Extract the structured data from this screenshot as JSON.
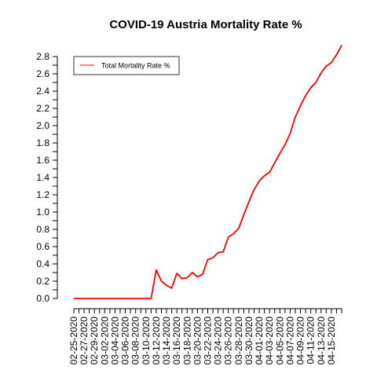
{
  "chart_data": {
    "type": "line",
    "title": "COVID-19 Austria Mortality Rate %",
    "xlabel": "",
    "ylabel": "",
    "ylim": [
      0,
      2.8
    ],
    "yticks": [
      "0.0",
      "0.2",
      "0.4",
      "0.6",
      "0.8",
      "1.0",
      "1.2",
      "1.4",
      "1.6",
      "1.8",
      "2.0",
      "2.2",
      "2.4",
      "2.6",
      "2.8"
    ],
    "xticks": [
      "02-25-2020",
      "02-27-2020",
      "02-29-2020",
      "03-02-2020",
      "03-04-2020",
      "03-06-2020",
      "03-08-2020",
      "03-10-2020",
      "03-12-2020",
      "03-14-2020",
      "03-16-2020",
      "03-18-2020",
      "03-20-2020",
      "03-22-2020",
      "03-24-2020",
      "03-26-2020",
      "03-28-2020",
      "03-30-2020",
      "04-01-2020",
      "04-03-2020",
      "04-05-2020",
      "04-07-2020",
      "04-09-2020",
      "04-11-2020",
      "04-13-2020",
      "04-15-2020"
    ],
    "grid": false,
    "legend_position": "top-left",
    "series": [
      {
        "name": "Total Mortality Rate %",
        "color": "#ff0000",
        "x": [
          "02-25-2020",
          "02-26-2020",
          "02-27-2020",
          "02-28-2020",
          "02-29-2020",
          "03-01-2020",
          "03-02-2020",
          "03-03-2020",
          "03-04-2020",
          "03-05-2020",
          "03-06-2020",
          "03-07-2020",
          "03-08-2020",
          "03-09-2020",
          "03-10-2020",
          "03-11-2020",
          "03-12-2020",
          "03-13-2020",
          "03-14-2020",
          "03-15-2020",
          "03-16-2020",
          "03-17-2020",
          "03-18-2020",
          "03-19-2020",
          "03-20-2020",
          "03-21-2020",
          "03-22-2020",
          "03-23-2020",
          "03-24-2020",
          "03-25-2020",
          "03-26-2020",
          "03-27-2020",
          "03-28-2020",
          "03-29-2020",
          "03-30-2020",
          "03-31-2020",
          "04-01-2020",
          "04-02-2020",
          "04-03-2020",
          "04-04-2020",
          "04-05-2020",
          "04-06-2020",
          "04-07-2020",
          "04-08-2020",
          "04-09-2020",
          "04-10-2020",
          "04-11-2020",
          "04-12-2020",
          "04-13-2020",
          "04-14-2020",
          "04-15-2020",
          "04-16-2020",
          "04-17-2020"
        ],
        "values": [
          0,
          0,
          0,
          0,
          0,
          0,
          0,
          0,
          0,
          0,
          0,
          0,
          0,
          0,
          0,
          0,
          0.33,
          0.2,
          0.15,
          0.12,
          0.29,
          0.23,
          0.24,
          0.3,
          0.25,
          0.28,
          0.45,
          0.47,
          0.53,
          0.54,
          0.71,
          0.75,
          0.81,
          0.97,
          1.12,
          1.26,
          1.36,
          1.42,
          1.46,
          1.57,
          1.68,
          1.78,
          1.91,
          2.1,
          2.23,
          2.35,
          2.44,
          2.5,
          2.61,
          2.69,
          2.73,
          2.82,
          2.93
        ]
      }
    ]
  }
}
